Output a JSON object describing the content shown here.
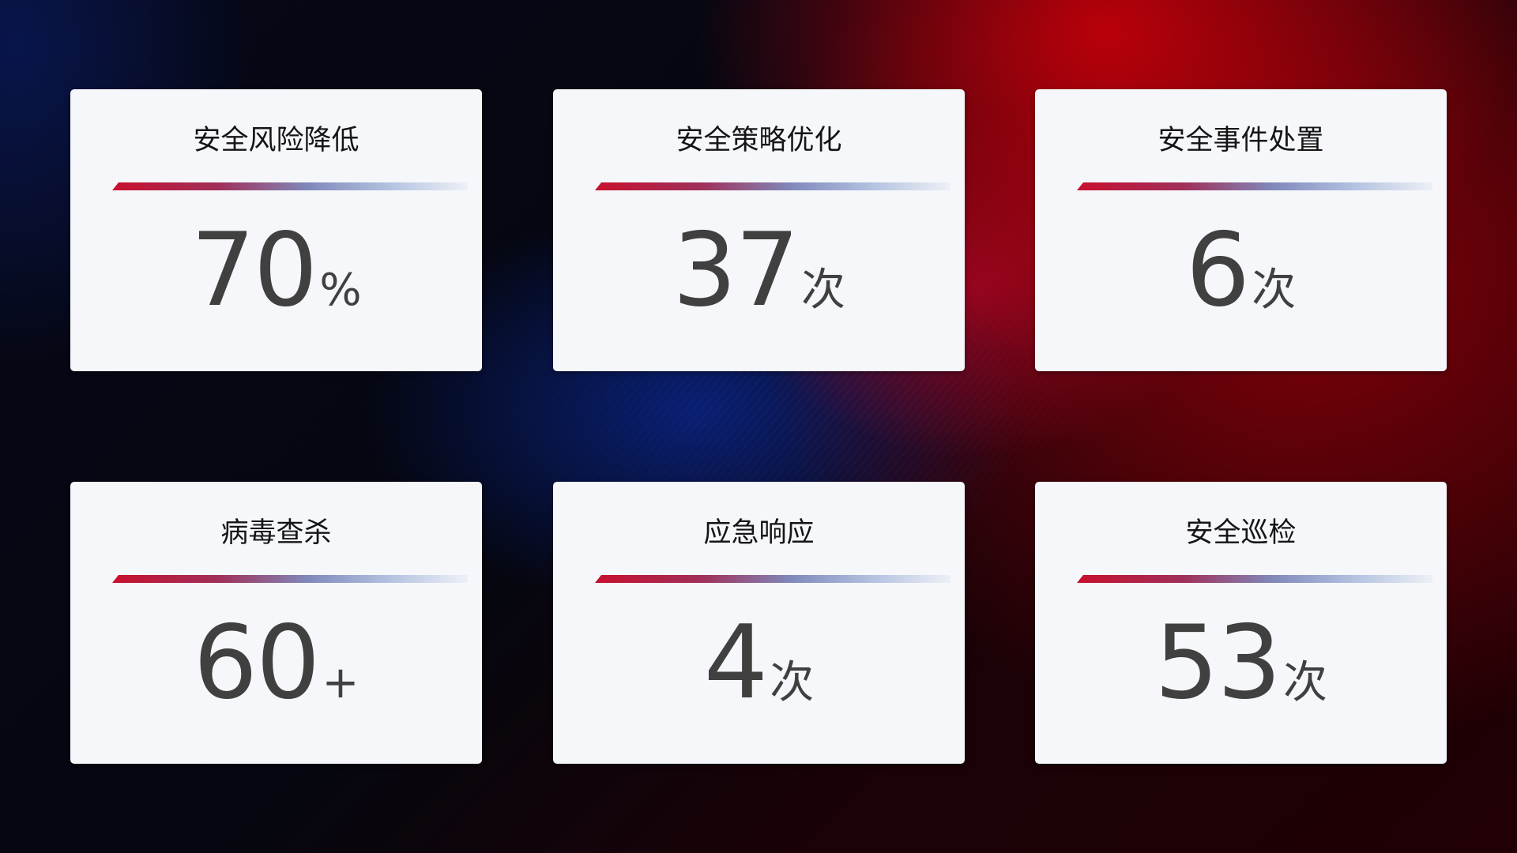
{
  "cards": [
    {
      "title": "安全风险降低",
      "value": "70",
      "unit": "%"
    },
    {
      "title": "安全策略优化",
      "value": "37",
      "unit": "次"
    },
    {
      "title": "安全事件处置",
      "value": "6",
      "unit": "次"
    },
    {
      "title": "病毒查杀",
      "value": "60",
      "unit": "+"
    },
    {
      "title": "应急响应",
      "value": "4",
      "unit": "次"
    },
    {
      "title": "安全巡检",
      "value": "53",
      "unit": "次"
    }
  ],
  "colors": {
    "accent_red": "#c8102e",
    "accent_blue": "#8088bb",
    "card_bg": "#f5f7fb",
    "value_text": "#404040"
  }
}
